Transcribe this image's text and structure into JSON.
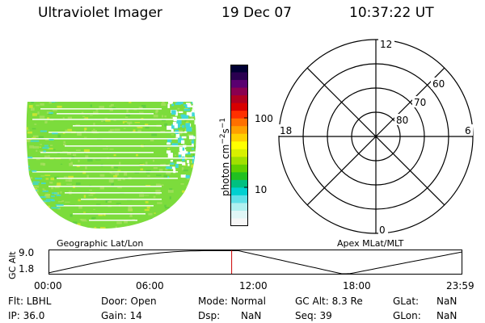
{
  "header": {
    "title": "Ultraviolet Imager",
    "date": "19 Dec 07",
    "time": "10:37:22 UT"
  },
  "colorbar": {
    "unit_label": "photon cm",
    "unit_sup1": "−2",
    "unit_mid": "s",
    "unit_sup2": "−1",
    "tick_upper": "100",
    "tick_lower": "10",
    "colors": [
      "#000033",
      "#2a0050",
      "#5a0070",
      "#8a0050",
      "#b00020",
      "#d80000",
      "#ff3000",
      "#ff7000",
      "#ffa000",
      "#ffd000",
      "#ffff00",
      "#d8f000",
      "#a0e000",
      "#60d000",
      "#20c020",
      "#00c080",
      "#00d0d0",
      "#60e0e8",
      "#b0f0f0",
      "#e0f6f6",
      "#f6f6f6"
    ]
  },
  "geo_panel": {
    "label": "Geographic Lat/Lon",
    "colors": {
      "base": "#7cdc3c",
      "light": "#a8e060",
      "stripe": "#ffffff",
      "cyan": "#40d8d8",
      "yellow": "#d8e830"
    }
  },
  "polar_panel": {
    "label": "Apex MLat/MLT",
    "mlt_labels": {
      "top": "12",
      "bottom": "0",
      "left": "18",
      "right": "6"
    },
    "lat_labels": [
      "60",
      "70",
      "80"
    ]
  },
  "altitude_plot": {
    "ylabel": "GC Alt",
    "ymax": "9.0",
    "ymin": "1.8",
    "x_ticks": [
      "00:00",
      "06:00",
      "12:00",
      "18:00",
      "23:59"
    ],
    "current_time_hours": 10.62,
    "marker_color": "#cc0000"
  },
  "status": {
    "flt_label": "Flt:",
    "flt_value": "LBHL",
    "ip_label": "IP:",
    "ip_value": "36.0",
    "door_label": "Door:",
    "door_value": "Open",
    "gain_label": "Gain:",
    "gain_value": "14",
    "mode_label": "Mode:",
    "mode_value": "Normal",
    "dsp_label": "Dsp:",
    "dsp_value": "NaN",
    "gcalt_label": "GC Alt:",
    "gcalt_value": "8.3 Re",
    "seq_label": "Seq:",
    "seq_value": "39",
    "glat_label": "GLat:",
    "glat_value": "NaN",
    "glon_label": "GLon:",
    "glon_value": "NaN"
  }
}
